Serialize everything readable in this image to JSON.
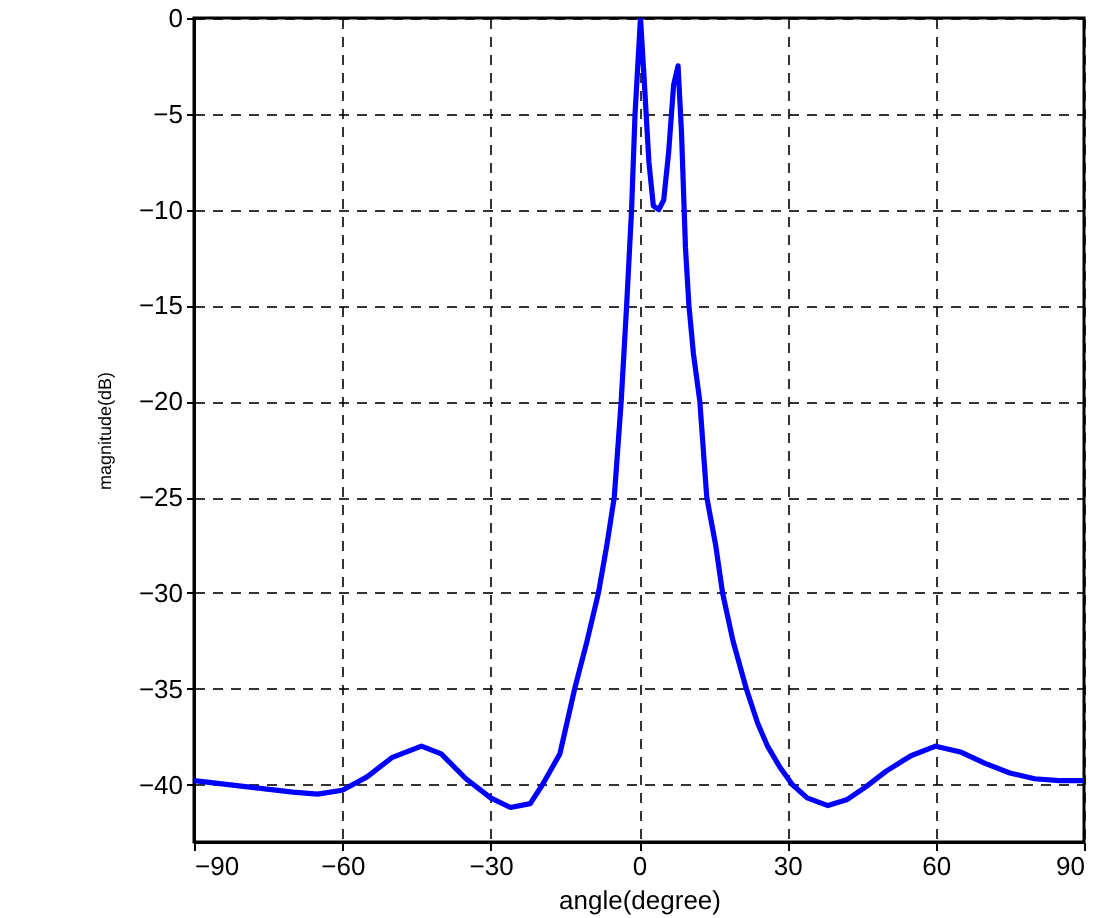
{
  "chart_data": {
    "type": "line",
    "xlabel": "angle(degree)",
    "ylabel": "magnitude(dB)",
    "xlim": [
      -90,
      90
    ],
    "xticks": [
      -90,
      -60,
      -30,
      0,
      30,
      60,
      90
    ],
    "ylim": [
      -43,
      0
    ],
    "yticks": [
      -40,
      -35,
      -30,
      -25,
      -20,
      -15,
      -10,
      -5,
      0
    ],
    "grid": true,
    "line_style": "solid",
    "x": [
      -90,
      -80,
      -70,
      -65,
      -60,
      -55,
      -50,
      -44,
      -40,
      -35,
      -30,
      -26,
      -22,
      -19.5,
      -16,
      -13,
      -10.5,
      -8.2,
      -6.5,
      -5,
      -3.6,
      -2.5,
      -1.5,
      -0.8,
      0.3,
      1,
      2,
      2.9,
      4,
      5,
      6,
      7,
      7.9,
      8.6,
      9.4,
      10.1,
      11,
      12.3,
      13.7,
      15.5,
      16.9,
      19,
      21.7,
      24,
      26,
      28.5,
      31,
      34,
      38.2,
      42,
      46,
      50,
      55,
      60,
      65,
      70,
      75,
      80,
      85,
      90
    ],
    "series": [
      {
        "color": "#0000ff",
        "values": [
          -39.8,
          -40.1,
          -40.4,
          -40.5,
          -40.3,
          -39.6,
          -38.6,
          -38.0,
          -38.4,
          -39.7,
          -40.7,
          -41.2,
          -41.0,
          -40,
          -38.4,
          -35,
          -32.5,
          -30,
          -27.5,
          -25,
          -20,
          -15,
          -10,
          -5,
          0,
          -3,
          -7.5,
          -9.8,
          -10,
          -9.5,
          -7,
          -3.5,
          -2.5,
          -6,
          -12,
          -15,
          -17.5,
          -20,
          -25,
          -27.5,
          -30,
          -32.5,
          -35,
          -36.8,
          -38,
          -39.1,
          -40,
          -40.7,
          -41.1,
          -40.8,
          -40.1,
          -39.3,
          -38.5,
          -38.0,
          -38.3,
          -38.9,
          -39.4,
          -39.7,
          -39.8,
          -39.8
        ]
      }
    ]
  }
}
